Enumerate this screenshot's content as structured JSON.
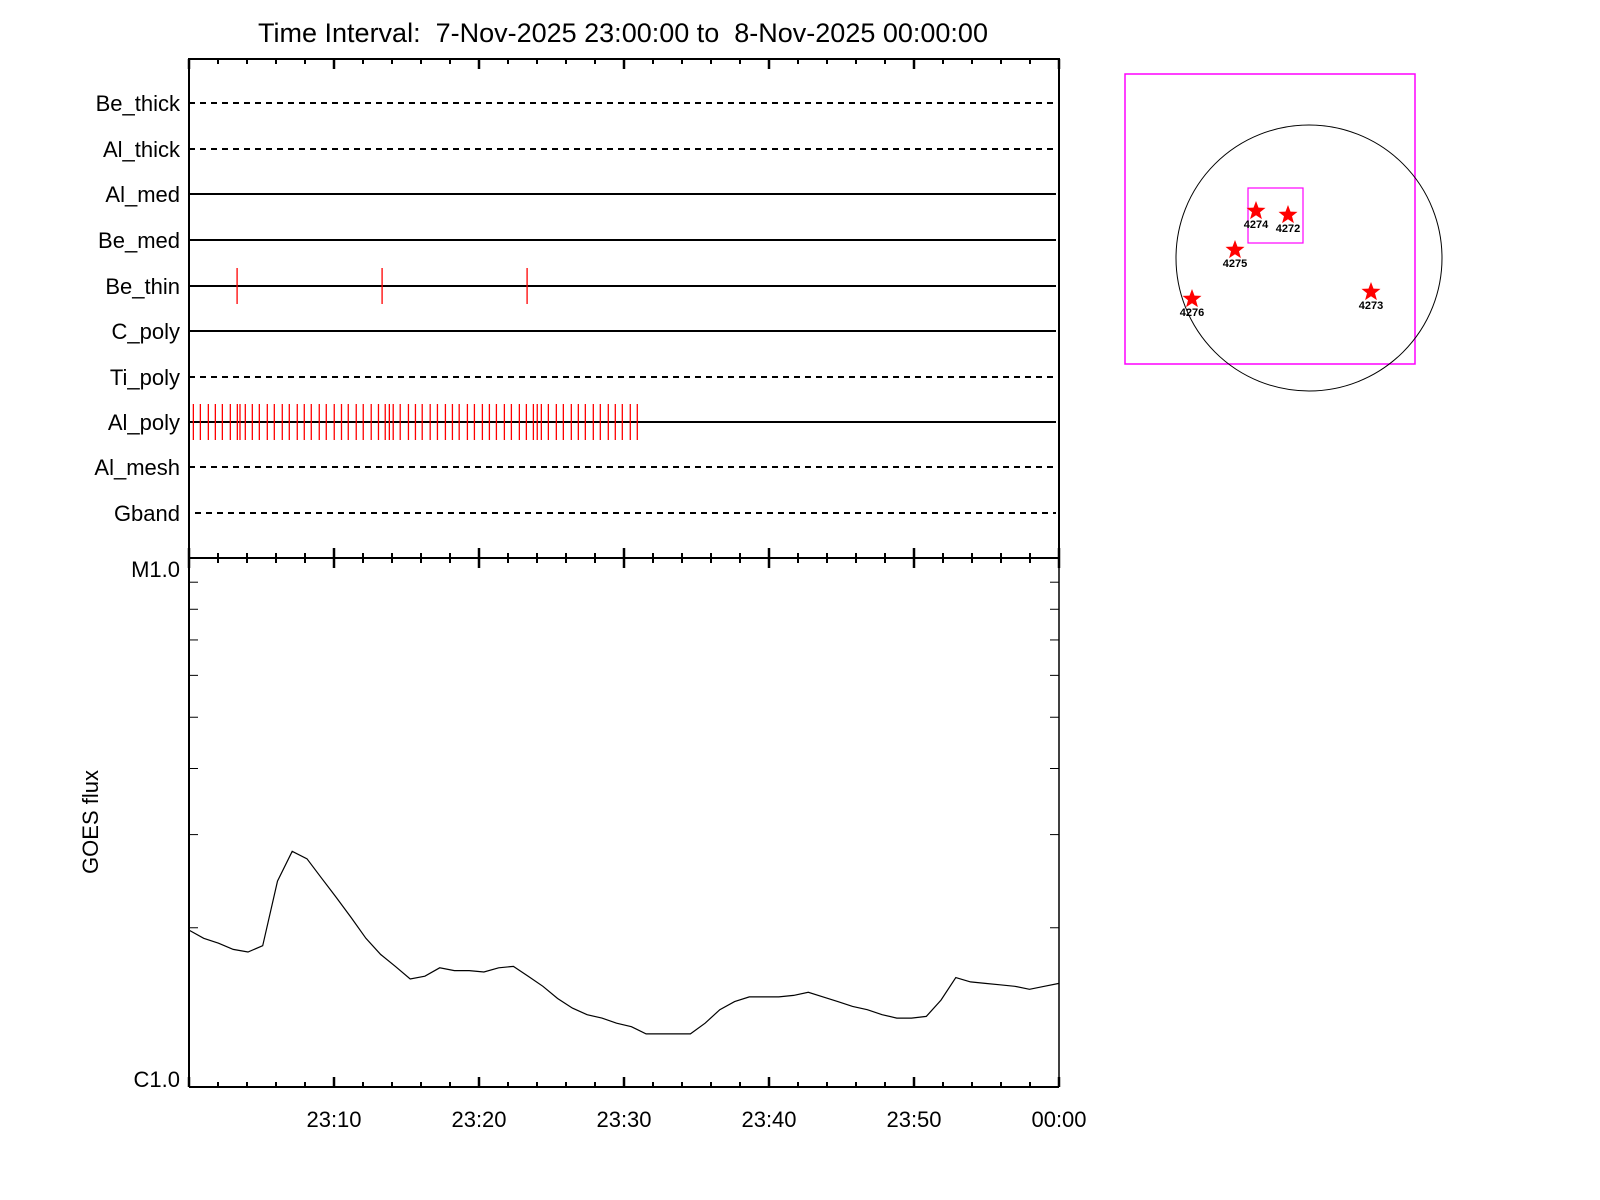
{
  "chart_data": [
    {
      "type": "event-raster",
      "title": "Time Interval:  7-Nov-2025 23:00:00 to  8-Nov-2025 00:00:00",
      "xlim": [
        "23:00",
        "00:00"
      ],
      "rows": [
        {
          "label": "Be_thick",
          "line": "dashed",
          "events": []
        },
        {
          "label": "Al_thick",
          "line": "dashed",
          "events": []
        },
        {
          "label": "Al_med",
          "line": "solid",
          "events": []
        },
        {
          "label": "Be_med",
          "line": "solid",
          "events": []
        },
        {
          "label": "Be_thin",
          "line": "solid",
          "events": [
            "23:03:19",
            "23:13:19",
            "23:23:19"
          ]
        },
        {
          "label": "C_poly",
          "line": "solid",
          "events": []
        },
        {
          "label": "Ti_poly",
          "line": "dashed",
          "events": []
        },
        {
          "label": "Al_poly",
          "line": "solid",
          "events": [
            "23:00:18",
            "23:00:47",
            "23:01:20",
            "23:01:49",
            "23:02:18",
            "23:02:51",
            "23:03:20",
            "23:03:31",
            "23:03:53",
            "23:04:22",
            "23:04:51",
            "23:05:24",
            "23:05:53",
            "23:06:26",
            "23:06:55",
            "23:07:28",
            "23:07:57",
            "23:08:26",
            "23:08:59",
            "23:09:28",
            "23:10:01",
            "23:10:31",
            "23:10:59",
            "23:11:32",
            "23:12:01",
            "23:12:34",
            "23:13:04",
            "23:13:32",
            "23:13:49",
            "23:14:05",
            "23:14:34",
            "23:15:08",
            "23:15:37",
            "23:16:05",
            "23:16:38",
            "23:17:08",
            "23:17:41",
            "23:18:10",
            "23:18:38",
            "23:19:12",
            "23:19:41",
            "23:20:14",
            "23:20:43",
            "23:21:12",
            "23:21:45",
            "23:22:14",
            "23:22:47",
            "23:23:16",
            "23:23:45",
            "23:24:01",
            "23:24:18",
            "23:24:47",
            "23:25:20",
            "23:25:49",
            "23:26:22",
            "23:26:51",
            "23:27:20",
            "23:27:53",
            "23:28:22",
            "23:28:55",
            "23:29:24",
            "23:29:53",
            "23:30:26",
            "23:30:55"
          ]
        },
        {
          "label": "Al_mesh",
          "line": "dashed",
          "events": []
        },
        {
          "label": "Gband",
          "line": "dashed",
          "events": []
        }
      ],
      "event_color": "#ff0000"
    },
    {
      "type": "line",
      "ylabel": "GOES flux",
      "yscale": "log",
      "ylim": [
        1e-06,
        1e-05
      ],
      "ytick_labels": [
        "M1.0",
        "C1.0"
      ],
      "xtick_labels": [
        "23:10",
        "23:20",
        "23:30",
        "23:40",
        "23:50",
        "00:00"
      ],
      "xlim": [
        "23:00",
        "00:00"
      ],
      "y": [
        1.98e-06,
        1.91e-06,
        1.87e-06,
        1.82e-06,
        1.8e-06,
        1.85e-06,
        2.45e-06,
        2.79e-06,
        2.7e-06,
        2.48e-06,
        2.28e-06,
        2.09e-06,
        1.91e-06,
        1.78e-06,
        1.69e-06,
        1.6e-06,
        1.62e-06,
        1.68e-06,
        1.66e-06,
        1.66e-06,
        1.65e-06,
        1.68e-06,
        1.69e-06,
        1.62e-06,
        1.55e-06,
        1.47e-06,
        1.41e-06,
        1.37e-06,
        1.35e-06,
        1.32e-06,
        1.3e-06,
        1.26e-06,
        1.26e-06,
        1.26e-06,
        1.26e-06,
        1.32e-06,
        1.4e-06,
        1.45e-06,
        1.48e-06,
        1.48e-06,
        1.48e-06,
        1.49e-06,
        1.51e-06,
        1.48e-06,
        1.45e-06,
        1.42e-06,
        1.4e-06,
        1.37e-06,
        1.35e-06,
        1.35e-06,
        1.36e-06,
        1.46e-06,
        1.61e-06,
        1.58e-06,
        1.57e-06,
        1.56e-06,
        1.55e-06,
        1.53e-06,
        1.55e-06,
        1.57e-06
      ],
      "line_color": "#000000"
    },
    {
      "type": "scatter",
      "note_color_box": "#ff00ff",
      "marker_color": "#ff0000",
      "regions": [
        "4274",
        "4272",
        "4275",
        "4276",
        "4273"
      ]
    }
  ]
}
